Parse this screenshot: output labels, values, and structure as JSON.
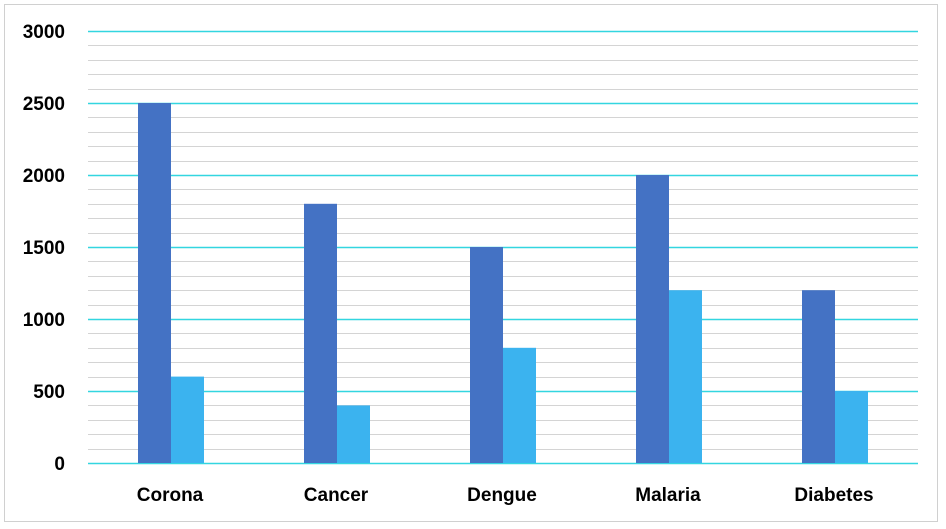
{
  "chart_data": {
    "type": "bar",
    "title": "",
    "xlabel": "",
    "ylabel": "",
    "categories": [
      "Corona",
      "Cancer",
      "Dengue",
      "Malaria",
      "Diabetes"
    ],
    "series": [
      {
        "values": [
          2500,
          1800,
          1500,
          2000,
          1200
        ],
        "color": "#4472c4"
      },
      {
        "values": [
          600,
          400,
          800,
          1200,
          500
        ],
        "color": "#3bb3ef"
      }
    ],
    "ylim": [
      0,
      3000
    ],
    "yticks": [
      "0",
      "500",
      "1000",
      "1500",
      "2000",
      "2500",
      "3000"
    ],
    "major_gridline_color": "#33d6e0",
    "minor_gridline_color": "#d4d4d4",
    "grid": true,
    "legend": "none"
  }
}
